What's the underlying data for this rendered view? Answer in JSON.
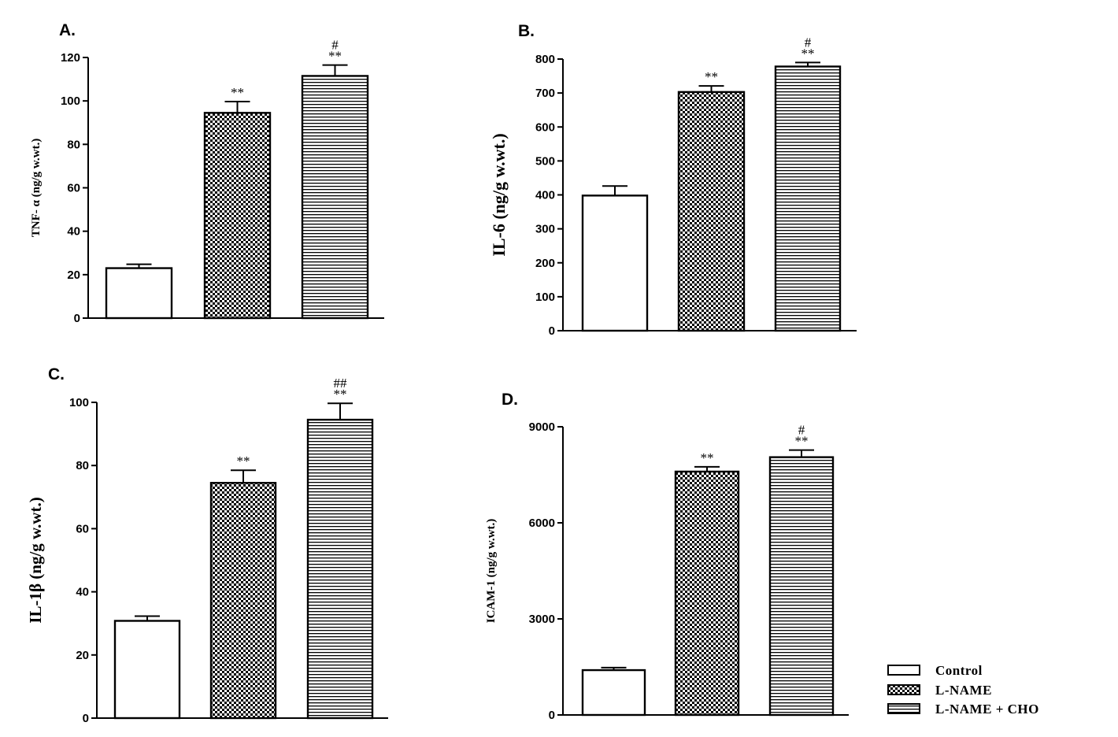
{
  "chart_data": [
    {
      "type": "bar",
      "panel": "A.",
      "categories": [
        "Control",
        "L-NAME",
        "L-NAME + CHO"
      ],
      "values": [
        23,
        94.5,
        111.5
      ],
      "errors": [
        1.8,
        5.2,
        5
      ],
      "annotations": [
        "",
        "**",
        "#\n**"
      ],
      "ylabel": "TNF- α (ng/g w.wt.)",
      "ylim": [
        0,
        120
      ],
      "yticks": [
        0,
        20,
        40,
        60,
        80,
        100,
        120
      ]
    },
    {
      "type": "bar",
      "panel": "B.",
      "categories": [
        "Control",
        "L-NAME",
        "L-NAME + CHO"
      ],
      "values": [
        398,
        703,
        778
      ],
      "errors": [
        28,
        18,
        12
      ],
      "annotations": [
        "",
        "**",
        "#\n**"
      ],
      "ylabel": "IL-6 (ng/g w.wt.)",
      "ylim": [
        0,
        800
      ],
      "yticks": [
        0,
        100,
        200,
        300,
        400,
        500,
        600,
        700,
        800
      ]
    },
    {
      "type": "bar",
      "panel": "C.",
      "categories": [
        "Control",
        "L-NAME",
        "L-NAME + CHO"
      ],
      "values": [
        30.8,
        74.5,
        94.5
      ],
      "errors": [
        1.5,
        4,
        5.2
      ],
      "annotations": [
        "",
        "**",
        "##\n**"
      ],
      "ylabel": "IL-1β (ng/g w.wt.)",
      "ylim": [
        0,
        100
      ],
      "yticks": [
        0,
        20,
        40,
        60,
        80,
        100
      ]
    },
    {
      "type": "bar",
      "panel": "D.",
      "categories": [
        "Control",
        "L-NAME",
        "L-NAME + CHO"
      ],
      "values": [
        1400,
        7600,
        8050
      ],
      "errors": [
        80,
        150,
        220
      ],
      "annotations": [
        "",
        "**",
        "#\n**"
      ],
      "ylabel": "ICAM-1 (ng/g w.wt.)",
      "ylim": [
        0,
        9000
      ],
      "yticks": [
        0,
        3000,
        6000,
        9000
      ]
    }
  ],
  "legend": {
    "placement": "bottom-right",
    "entries": [
      {
        "label": "Control",
        "pattern": "open"
      },
      {
        "label": "L-NAME",
        "pattern": "checker"
      },
      {
        "label": "L-NAME + CHO",
        "pattern": "hlines"
      }
    ]
  }
}
